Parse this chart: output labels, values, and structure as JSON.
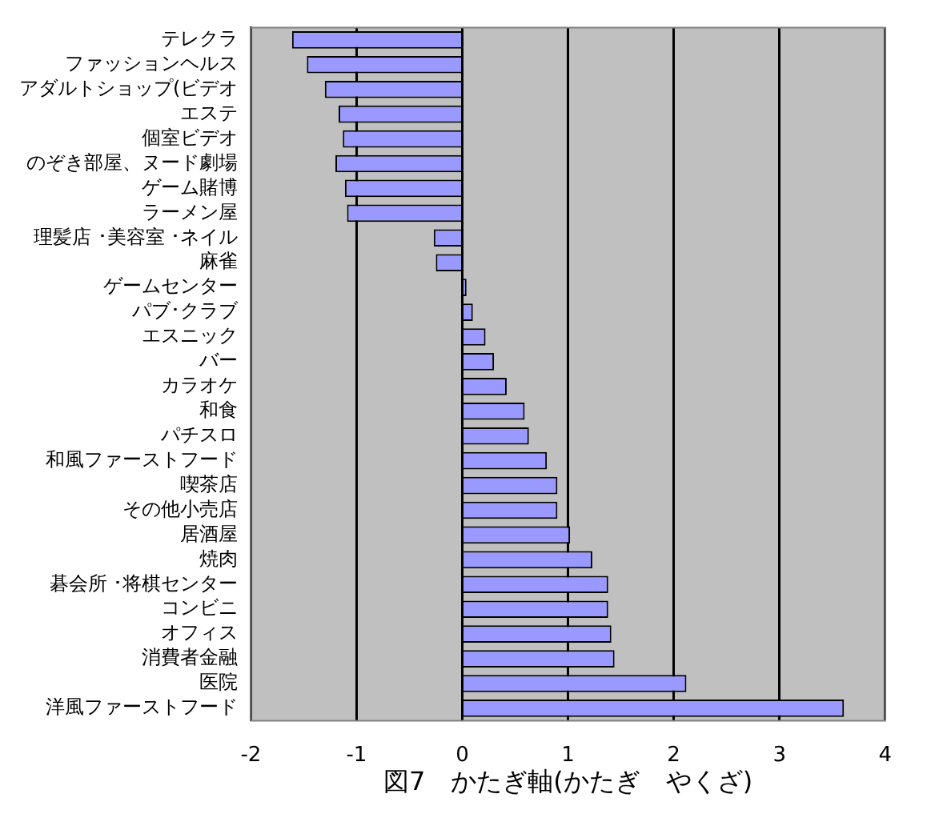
{
  "chart_data": {
    "type": "bar",
    "orientation": "horizontal",
    "xlabel": "図7　かたぎ軸(かたぎ　やくざ)",
    "categories": [
      "テレクラ",
      "ファッションヘルス",
      "アダルトショップ(ビデオ",
      "エステ",
      "個室ビデオ",
      "のぞき部屋、ヌード劇場",
      "ゲーム賭博",
      "ラーメン屋",
      "理髪店 ･美容室 ･ネイル",
      "麻雀",
      "ゲームセンター",
      "パブ･クラブ",
      "エスニック",
      "バー",
      "カラオケ",
      "和食",
      "パチスロ",
      "和風ファーストフード",
      "喫茶店",
      "その他小売店",
      "居酒屋",
      "焼肉",
      "碁会所 ･将棋センター",
      "コンビニ",
      "オフィス",
      "消費者金融",
      "医院",
      "洋風ファーストフード"
    ],
    "values": [
      -1.61,
      -1.47,
      -1.3,
      -1.17,
      -1.13,
      -1.2,
      -1.11,
      -1.09,
      -0.27,
      -0.25,
      0.04,
      0.1,
      0.22,
      0.3,
      0.42,
      0.59,
      0.63,
      0.8,
      0.9,
      0.9,
      1.02,
      1.23,
      1.38,
      1.38,
      1.41,
      1.44,
      2.12,
      3.61
    ],
    "color": "#9999ff",
    "xlim": [
      -2,
      4
    ],
    "xticks": [
      -2,
      -1,
      0,
      1,
      2,
      3,
      4
    ],
    "grid": "x",
    "legend": false
  }
}
